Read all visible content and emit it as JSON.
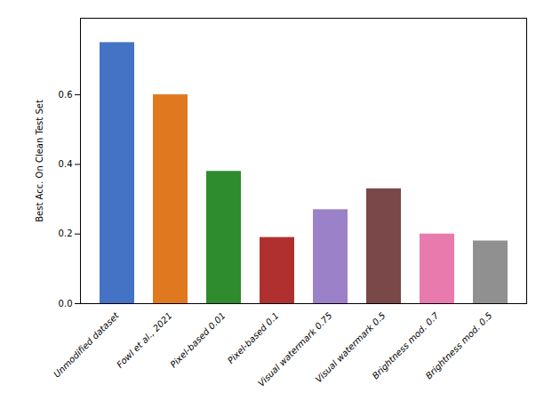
{
  "chart_data": {
    "type": "bar",
    "categories": [
      "Unmodified dataset",
      "Fowl et al., 2021",
      "Pixel-based 0.01",
      "Pixel-based 0.1",
      "Visual watermark 0.75",
      "Visual watermark 0.5",
      "Brightness mod. 0.7",
      "Brightness mod. 0.5"
    ],
    "values": [
      0.75,
      0.6,
      0.38,
      0.19,
      0.27,
      0.33,
      0.2,
      0.18
    ],
    "colors": [
      "#4472C4",
      "#E07820",
      "#2E8B2E",
      "#B03030",
      "#9B82C8",
      "#7A4848",
      "#E87AAE",
      "#909090"
    ],
    "ylabel": "Best Acc. On Clean Test Set",
    "ylim": [
      0,
      0.82
    ],
    "yticks": [
      {
        "value": 0,
        "label": "0.0"
      },
      0.2,
      0.4,
      0.6
    ],
    "grid": false
  }
}
